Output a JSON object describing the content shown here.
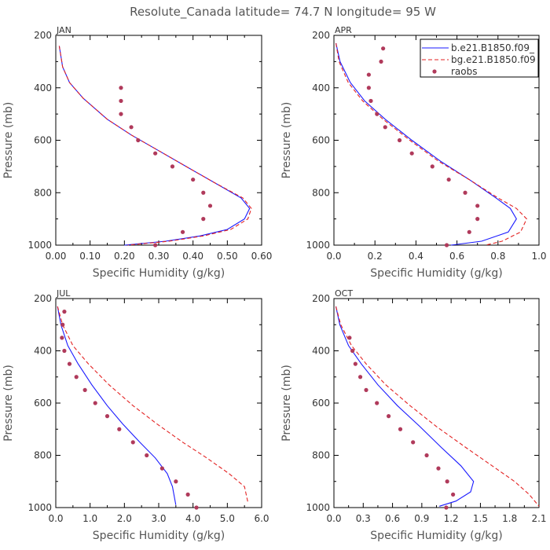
{
  "figure": {
    "title": "Resolute_Canada  latitude= 74.7 N longitude= 95 W"
  },
  "colors": {
    "model_b": "#1a1aff",
    "model_bg": "#e32222",
    "raobs": "#b03a5b",
    "axis": "#000000"
  },
  "legend": {
    "entries": [
      {
        "label": "b.e21.B1850.f09_",
        "style": "solid",
        "color": "#1a1aff"
      },
      {
        "label": "bg.e21.B1850.f09",
        "style": "dashed",
        "color": "#e32222"
      },
      {
        "label": "raobs",
        "style": "dot",
        "color": "#b03a5b"
      }
    ]
  },
  "chart_data": [
    {
      "type": "line",
      "panel": "JAN",
      "xlabel": "Specific Humidity (g/kg)",
      "ylabel": "Pressure (mb)",
      "xlim": [
        0.0,
        0.6
      ],
      "xticks": [
        "0.00",
        "0.10",
        "0.20",
        "0.30",
        "0.40",
        "0.50",
        "0.60"
      ],
      "xtick_values": [
        0.0,
        0.1,
        0.2,
        0.3,
        0.4,
        0.5,
        0.6
      ],
      "ylim": [
        1000,
        200
      ],
      "yticks": [
        "200",
        "400",
        "600",
        "800",
        "1000"
      ],
      "ytick_values": [
        200,
        400,
        600,
        800,
        1000
      ],
      "series": [
        {
          "name": "b.e21.B1850.f09_",
          "style": "solid",
          "color": "#1a1aff",
          "points": [
            [
              0.01,
              240
            ],
            [
              0.02,
              320
            ],
            [
              0.04,
              380
            ],
            [
              0.08,
              440
            ],
            [
              0.15,
              520
            ],
            [
              0.22,
              580
            ],
            [
              0.3,
              640
            ],
            [
              0.38,
              700
            ],
            [
              0.46,
              760
            ],
            [
              0.54,
              820
            ],
            [
              0.565,
              860
            ],
            [
              0.55,
              900
            ],
            [
              0.5,
              940
            ],
            [
              0.42,
              965
            ],
            [
              0.32,
              985
            ],
            [
              0.2,
              1000
            ]
          ]
        },
        {
          "name": "bg.e21.B1850.f09",
          "style": "dashed",
          "color": "#e32222",
          "points": [
            [
              0.01,
              240
            ],
            [
              0.02,
              320
            ],
            [
              0.04,
              380
            ],
            [
              0.08,
              440
            ],
            [
              0.15,
              520
            ],
            [
              0.22,
              580
            ],
            [
              0.3,
              640
            ],
            [
              0.38,
              700
            ],
            [
              0.46,
              760
            ],
            [
              0.545,
              820
            ],
            [
              0.57,
              860
            ],
            [
              0.56,
              900
            ],
            [
              0.51,
              940
            ],
            [
              0.43,
              965
            ],
            [
              0.33,
              985
            ],
            [
              0.21,
              1000
            ]
          ]
        },
        {
          "name": "raobs",
          "style": "dot",
          "color": "#b03a5b",
          "points": [
            [
              0.19,
              400
            ],
            [
              0.19,
              450
            ],
            [
              0.19,
              500
            ],
            [
              0.22,
              550
            ],
            [
              0.24,
              600
            ],
            [
              0.29,
              650
            ],
            [
              0.34,
              700
            ],
            [
              0.4,
              750
            ],
            [
              0.43,
              800
            ],
            [
              0.45,
              850
            ],
            [
              0.43,
              900
            ],
            [
              0.37,
              950
            ],
            [
              0.29,
              1000
            ]
          ]
        }
      ]
    },
    {
      "type": "line",
      "panel": "APR",
      "xlabel": "Specific Humidity (g/kg)",
      "ylabel": "Pressure (mb)",
      "xlim": [
        0.0,
        1.0
      ],
      "xticks": [
        "0.0",
        "0.2",
        "0.4",
        "0.6",
        "0.8",
        "1.0"
      ],
      "xtick_values": [
        0.0,
        0.2,
        0.4,
        0.6,
        0.8,
        1.0
      ],
      "ylim": [
        1000,
        200
      ],
      "yticks": [
        "200",
        "400",
        "600",
        "800",
        "1000"
      ],
      "ytick_values": [
        200,
        400,
        600,
        800,
        1000
      ],
      "series": [
        {
          "name": "b.e21.B1850.f09_",
          "style": "solid",
          "color": "#1a1aff",
          "points": [
            [
              0.01,
              230
            ],
            [
              0.03,
              300
            ],
            [
              0.08,
              380
            ],
            [
              0.15,
              450
            ],
            [
              0.25,
              520
            ],
            [
              0.38,
              600
            ],
            [
              0.52,
              680
            ],
            [
              0.66,
              750
            ],
            [
              0.79,
              820
            ],
            [
              0.86,
              860
            ],
            [
              0.89,
              900
            ],
            [
              0.85,
              950
            ],
            [
              0.72,
              985
            ],
            [
              0.57,
              1000
            ]
          ]
        },
        {
          "name": "bg.e21.B1850.f09",
          "style": "dashed",
          "color": "#e32222",
          "points": [
            [
              0.01,
              230
            ],
            [
              0.025,
              300
            ],
            [
              0.07,
              380
            ],
            [
              0.14,
              450
            ],
            [
              0.24,
              520
            ],
            [
              0.37,
              600
            ],
            [
              0.51,
              680
            ],
            [
              0.66,
              750
            ],
            [
              0.8,
              820
            ],
            [
              0.89,
              860
            ],
            [
              0.94,
              900
            ],
            [
              0.91,
              950
            ],
            [
              0.82,
              985
            ],
            [
              0.74,
              1000
            ]
          ]
        },
        {
          "name": "raobs",
          "style": "dot",
          "color": "#b03a5b",
          "points": [
            [
              0.24,
              250
            ],
            [
              0.23,
              300
            ],
            [
              0.17,
              350
            ],
            [
              0.17,
              400
            ],
            [
              0.18,
              450
            ],
            [
              0.21,
              500
            ],
            [
              0.25,
              550
            ],
            [
              0.32,
              600
            ],
            [
              0.38,
              650
            ],
            [
              0.48,
              700
            ],
            [
              0.56,
              750
            ],
            [
              0.64,
              800
            ],
            [
              0.7,
              850
            ],
            [
              0.7,
              900
            ],
            [
              0.66,
              950
            ],
            [
              0.55,
              1000
            ]
          ]
        }
      ]
    },
    {
      "type": "line",
      "panel": "JUL",
      "xlabel": "Specific Humidity (g/kg)",
      "ylabel": "Pressure (mb)",
      "xlim": [
        0.0,
        6.0
      ],
      "xticks": [
        "0.0",
        "1.0",
        "2.0",
        "3.0",
        "4.0",
        "5.0",
        "6.0"
      ],
      "xtick_values": [
        0.0,
        1.0,
        2.0,
        3.0,
        4.0,
        5.0,
        6.0
      ],
      "ylim": [
        1000,
        200
      ],
      "yticks": [
        "200",
        "400",
        "600",
        "800",
        "1000"
      ],
      "ytick_values": [
        200,
        400,
        600,
        800,
        1000
      ],
      "series": [
        {
          "name": "b.e21.B1850.f09_",
          "style": "solid",
          "color": "#1a1aff",
          "points": [
            [
              0.05,
              230
            ],
            [
              0.15,
              300
            ],
            [
              0.35,
              380
            ],
            [
              0.65,
              450
            ],
            [
              1.05,
              530
            ],
            [
              1.5,
              610
            ],
            [
              1.95,
              680
            ],
            [
              2.45,
              750
            ],
            [
              2.9,
              810
            ],
            [
              3.25,
              870
            ],
            [
              3.4,
              920
            ],
            [
              3.5,
              990
            ]
          ]
        },
        {
          "name": "bg.e21.B1850.f09",
          "style": "dashed",
          "color": "#e32222",
          "points": [
            [
              0.05,
              230
            ],
            [
              0.2,
              300
            ],
            [
              0.5,
              380
            ],
            [
              0.95,
              450
            ],
            [
              1.55,
              530
            ],
            [
              2.25,
              610
            ],
            [
              2.95,
              680
            ],
            [
              3.7,
              750
            ],
            [
              4.4,
              810
            ],
            [
              5.05,
              870
            ],
            [
              5.5,
              920
            ],
            [
              5.6,
              980
            ]
          ]
        },
        {
          "name": "raobs",
          "style": "dot",
          "color": "#b03a5b",
          "points": [
            [
              0.25,
              250
            ],
            [
              0.2,
              300
            ],
            [
              0.18,
              350
            ],
            [
              0.25,
              400
            ],
            [
              0.4,
              450
            ],
            [
              0.6,
              500
            ],
            [
              0.85,
              550
            ],
            [
              1.15,
              600
            ],
            [
              1.5,
              650
            ],
            [
              1.85,
              700
            ],
            [
              2.25,
              750
            ],
            [
              2.65,
              800
            ],
            [
              3.1,
              850
            ],
            [
              3.5,
              900
            ],
            [
              3.85,
              950
            ],
            [
              4.1,
              1000
            ]
          ]
        }
      ]
    },
    {
      "type": "line",
      "panel": "OCT",
      "xlabel": "Specific Humidity (g/kg)",
      "ylabel": "Pressure (mb)",
      "xlim": [
        0.0,
        2.1
      ],
      "xticks": [
        "0.0",
        "0.3",
        "0.6",
        "0.9",
        "1.2",
        "1.5",
        "1.8",
        "2.1"
      ],
      "xtick_values": [
        0.0,
        0.3,
        0.6,
        0.9,
        1.2,
        1.5,
        1.8,
        2.1
      ],
      "ylim": [
        1000,
        200
      ],
      "yticks": [
        "200",
        "400",
        "600",
        "800",
        "1000"
      ],
      "ytick_values": [
        200,
        400,
        600,
        800,
        1000
      ],
      "series": [
        {
          "name": "b.e21.B1850.f09_",
          "style": "solid",
          "color": "#1a1aff",
          "points": [
            [
              0.02,
              230
            ],
            [
              0.06,
              300
            ],
            [
              0.15,
              380
            ],
            [
              0.28,
              450
            ],
            [
              0.45,
              530
            ],
            [
              0.65,
              610
            ],
            [
              0.88,
              690
            ],
            [
              1.1,
              770
            ],
            [
              1.3,
              840
            ],
            [
              1.43,
              900
            ],
            [
              1.4,
              940
            ],
            [
              1.25,
              975
            ],
            [
              1.08,
              995
            ]
          ]
        },
        {
          "name": "bg.e21.B1850.f09",
          "style": "dashed",
          "color": "#e32222",
          "points": [
            [
              0.02,
              230
            ],
            [
              0.07,
              300
            ],
            [
              0.18,
              380
            ],
            [
              0.33,
              450
            ],
            [
              0.53,
              530
            ],
            [
              0.78,
              610
            ],
            [
              1.05,
              690
            ],
            [
              1.35,
              770
            ],
            [
              1.62,
              840
            ],
            [
              1.85,
              900
            ],
            [
              2.0,
              950
            ],
            [
              2.1,
              995
            ]
          ]
        },
        {
          "name": "raobs",
          "style": "dot",
          "color": "#b03a5b",
          "points": [
            [
              0.16,
              350
            ],
            [
              0.19,
              400
            ],
            [
              0.22,
              450
            ],
            [
              0.27,
              500
            ],
            [
              0.33,
              550
            ],
            [
              0.44,
              600
            ],
            [
              0.56,
              650
            ],
            [
              0.68,
              700
            ],
            [
              0.81,
              750
            ],
            [
              0.95,
              800
            ],
            [
              1.07,
              850
            ],
            [
              1.16,
              900
            ],
            [
              1.22,
              950
            ],
            [
              1.15,
              1000
            ]
          ]
        }
      ]
    }
  ]
}
